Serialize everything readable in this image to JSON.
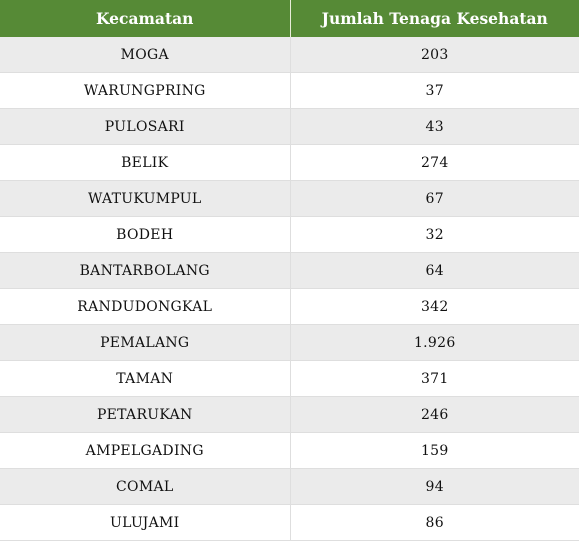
{
  "table": {
    "headers": [
      "Kecamatan",
      "Jumlah Tenaga Kesehatan"
    ],
    "rows": [
      [
        "MOGA",
        "203"
      ],
      [
        "WARUNGPRING",
        "37"
      ],
      [
        "PULOSARI",
        "43"
      ],
      [
        "BELIK",
        "274"
      ],
      [
        "WATUKUMPUL",
        "67"
      ],
      [
        "BODEH",
        "32"
      ],
      [
        "BANTARBOLANG",
        "64"
      ],
      [
        "RANDUDONGKAL",
        "342"
      ],
      [
        "PEMALANG",
        "1.926"
      ],
      [
        "TAMAN",
        "371"
      ],
      [
        "PETARUKAN",
        "246"
      ],
      [
        "AMPELGADING",
        "159"
      ],
      [
        "COMAL",
        "94"
      ],
      [
        "ULUJAMI",
        "86"
      ]
    ]
  },
  "colors": {
    "header_bg": "#568a36",
    "header_text": "#ffffff",
    "row_alt_bg": "#ebebeb",
    "row_bg": "#ffffff"
  }
}
